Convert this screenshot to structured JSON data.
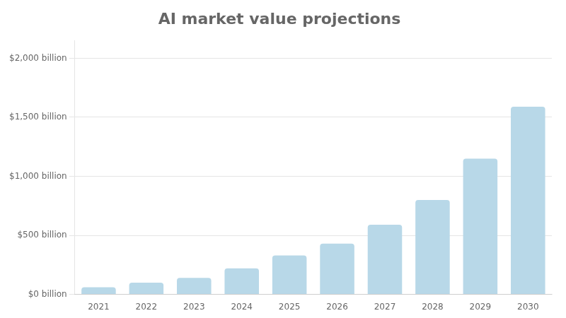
{
  "chart_data": {
    "type": "bar",
    "title": "AI market value projections",
    "categories": [
      "2021",
      "2022",
      "2023",
      "2024",
      "2025",
      "2026",
      "2027",
      "2028",
      "2029",
      "2030"
    ],
    "values": [
      60,
      100,
      140,
      220,
      330,
      430,
      590,
      800,
      1150,
      1590
    ],
    "color": "#b8d8e8",
    "ylim": [
      0,
      2150
    ],
    "yticks": [
      {
        "value": 0,
        "label": "$0 billion"
      },
      {
        "value": 500,
        "label": "$500 billion"
      },
      {
        "value": 1000,
        "label": "$1,000 billion"
      },
      {
        "value": 1500,
        "label": "$1,500 billion"
      },
      {
        "value": 2000,
        "label": "$2,000 billion"
      }
    ],
    "grid": true
  }
}
